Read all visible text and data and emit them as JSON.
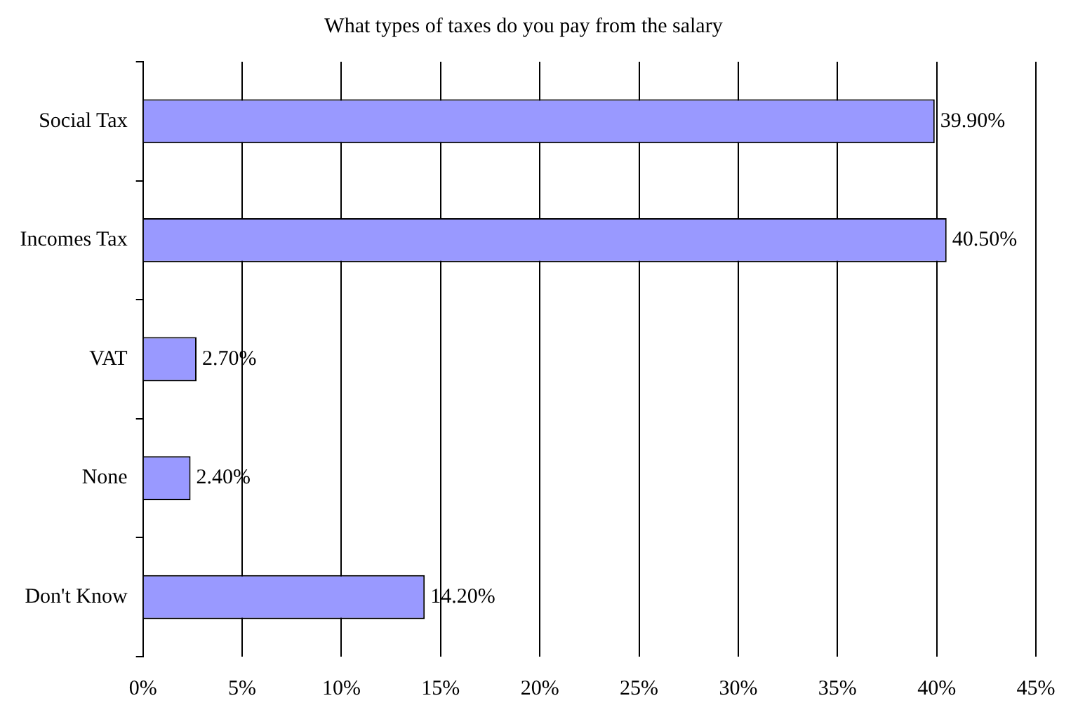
{
  "chart_data": {
    "type": "bar",
    "orientation": "horizontal",
    "title": "What types of taxes do you pay from the salary",
    "categories": [
      "Social Tax",
      "Incomes Tax",
      "VAT",
      "None",
      "Don't Know"
    ],
    "values": [
      39.9,
      40.5,
      2.7,
      2.4,
      14.2
    ],
    "value_labels": [
      "39.90%",
      "40.50%",
      "2.70%",
      "2.40%",
      "14.20%"
    ],
    "color": "#9999ff",
    "xlim": [
      0,
      45
    ],
    "xticks": [
      {
        "value": 0,
        "label": "0%"
      },
      {
        "value": 5,
        "label": "5%"
      },
      {
        "value": 10,
        "label": "10%"
      },
      {
        "value": 15,
        "label": "15%"
      },
      {
        "value": 20,
        "label": "20%"
      },
      {
        "value": 25,
        "label": "25%"
      },
      {
        "value": 30,
        "label": "30%"
      },
      {
        "value": 35,
        "label": "35%"
      },
      {
        "value": 40,
        "label": "40%"
      },
      {
        "value": 45,
        "label": "45%"
      }
    ],
    "grid": "x",
    "legend": false
  }
}
